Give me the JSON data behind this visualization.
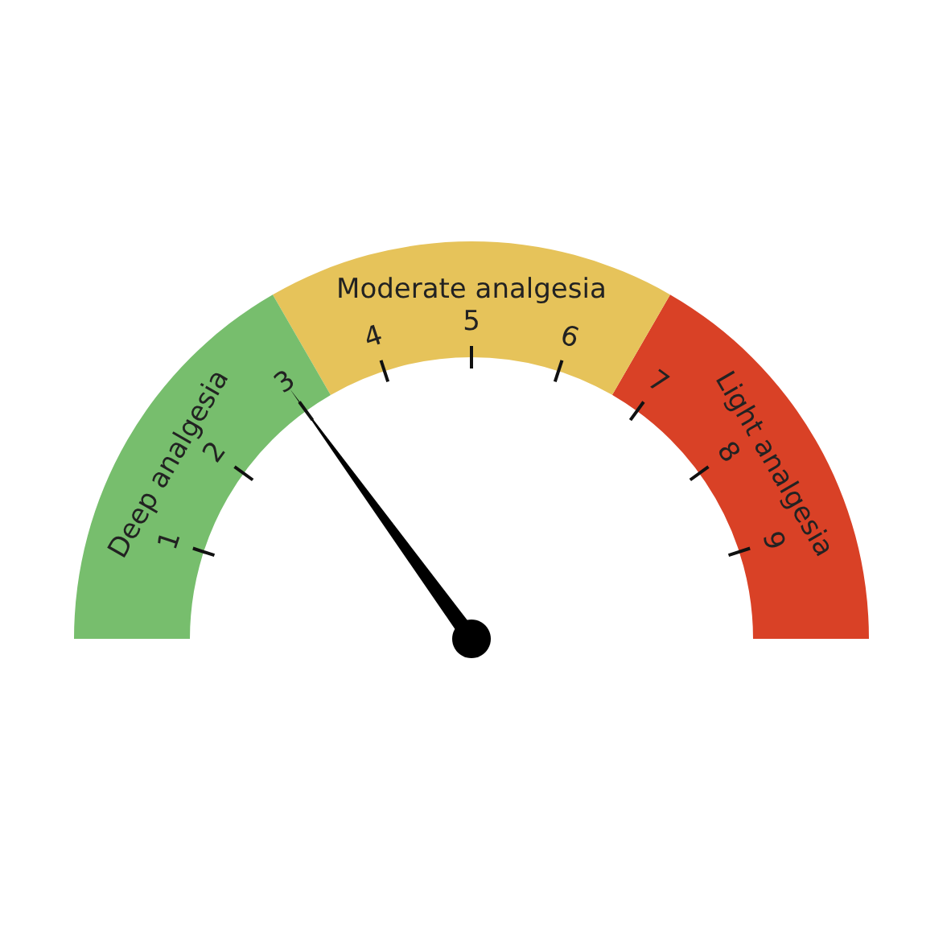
{
  "chart_data": {
    "type": "donut",
    "categories": [
      "Deep analgesia",
      "Moderate analgesia",
      "Light analgesia"
    ],
    "values": [
      33.33,
      33.33,
      33.34
    ],
    "colors": [
      "#77be6d",
      "#e6c35a",
      "#d94126"
    ],
    "needle": "Deep analgesia",
    "annotations": [
      "1",
      "2",
      "3",
      "4",
      "5",
      "6",
      "7",
      "8",
      "9"
    ]
  }
}
